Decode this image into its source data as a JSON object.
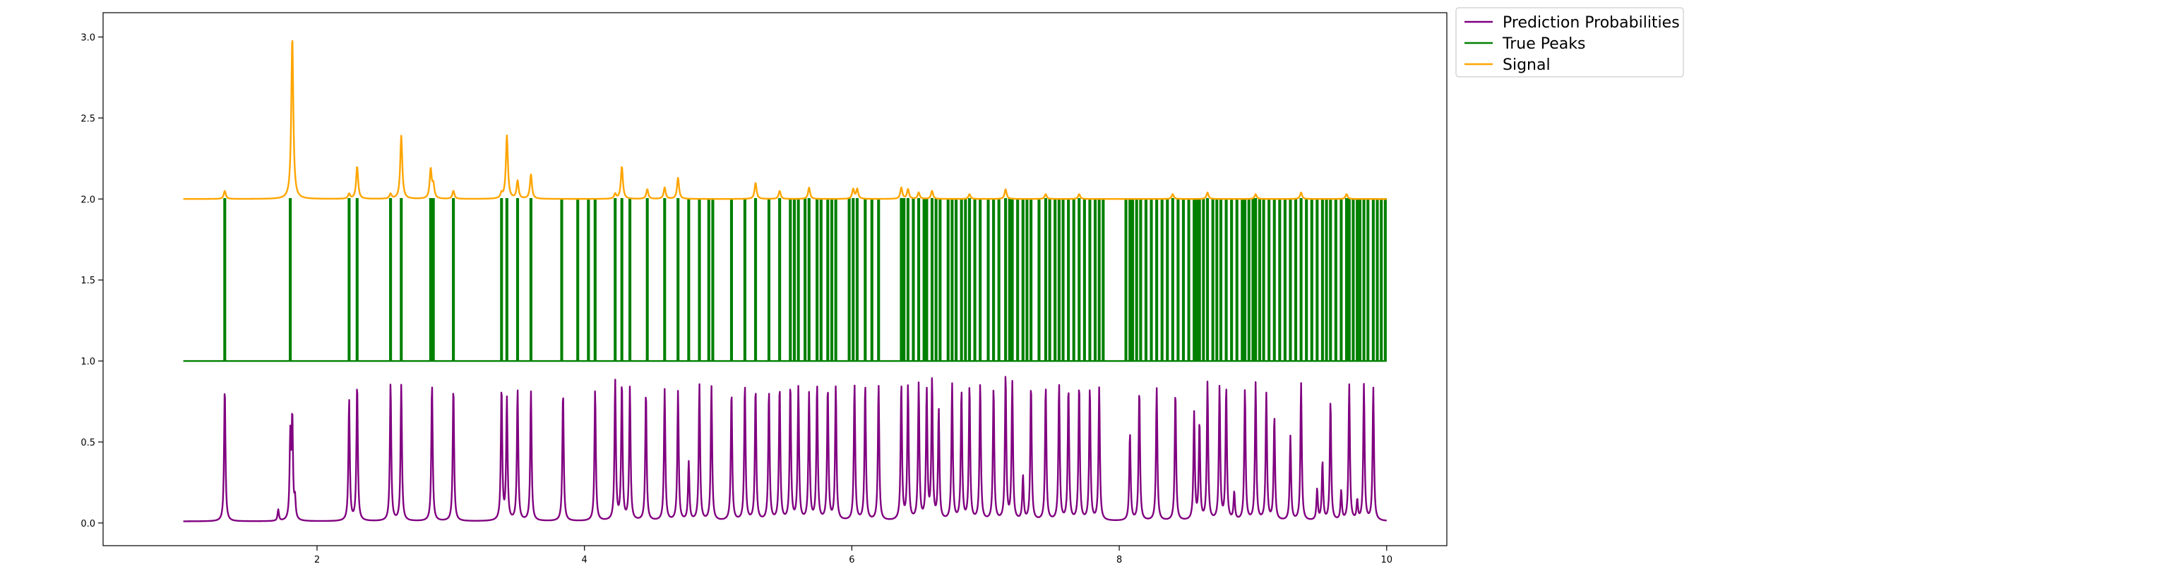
{
  "chart_data": {
    "type": "line",
    "title": "",
    "xlabel": "",
    "ylabel": "",
    "xlim": [
      0.4,
      10.45
    ],
    "ylim": [
      -0.14,
      3.15
    ],
    "x_ticks": [
      2,
      4,
      6,
      8,
      10
    ],
    "x_tick_labels": [
      "2",
      "4",
      "6",
      "8",
      "10"
    ],
    "y_ticks": [
      0.0,
      0.5,
      1.0,
      1.5,
      2.0,
      2.5,
      3.0
    ],
    "y_tick_labels": [
      "0.0",
      "0.5",
      "1.0",
      "1.5",
      "2.0",
      "2.5",
      "3.0"
    ],
    "grid": false,
    "legend_position": "outside-top-right",
    "x_range": [
      1.0,
      10.0
    ],
    "series": [
      {
        "name": "Prediction Probabilities",
        "color": "#800080",
        "baseline": 0.01,
        "peaks": [
          [
            1.31,
            0.83
          ],
          [
            1.71,
            0.07
          ],
          [
            1.8,
            0.5
          ],
          [
            1.815,
            0.62
          ],
          [
            1.835,
            0.12
          ],
          [
            2.24,
            0.75
          ],
          [
            2.3,
            0.85
          ],
          [
            2.55,
            0.85
          ],
          [
            2.63,
            0.84
          ],
          [
            2.86,
            0.85
          ],
          [
            3.02,
            0.83
          ],
          [
            3.38,
            0.82
          ],
          [
            3.42,
            0.75
          ],
          [
            3.5,
            0.81
          ],
          [
            3.6,
            0.8
          ],
          [
            3.84,
            0.8
          ],
          [
            4.08,
            0.81
          ],
          [
            4.23,
            0.86
          ],
          [
            4.28,
            0.85
          ],
          [
            4.34,
            0.82
          ],
          [
            4.46,
            0.8
          ],
          [
            4.6,
            0.81
          ],
          [
            4.7,
            0.8
          ],
          [
            4.78,
            0.36
          ],
          [
            4.86,
            0.84
          ],
          [
            4.95,
            0.83
          ],
          [
            5.1,
            0.8
          ],
          [
            5.2,
            0.84
          ],
          [
            5.28,
            0.82
          ],
          [
            5.38,
            0.8
          ],
          [
            5.46,
            0.83
          ],
          [
            5.54,
            0.84
          ],
          [
            5.6,
            0.82
          ],
          [
            5.68,
            0.78
          ],
          [
            5.74,
            0.84
          ],
          [
            5.82,
            0.82
          ],
          [
            5.88,
            0.83
          ],
          [
            6.02,
            0.84
          ],
          [
            6.1,
            0.84
          ],
          [
            6.2,
            0.84
          ],
          [
            6.37,
            0.84
          ],
          [
            6.42,
            0.83
          ],
          [
            6.5,
            0.84
          ],
          [
            6.56,
            0.8
          ],
          [
            6.6,
            0.86
          ],
          [
            6.65,
            0.68
          ],
          [
            6.75,
            0.84
          ],
          [
            6.82,
            0.8
          ],
          [
            6.88,
            0.83
          ],
          [
            6.96,
            0.84
          ],
          [
            7.06,
            0.82
          ],
          [
            7.15,
            0.9
          ],
          [
            7.2,
            0.85
          ],
          [
            7.28,
            0.27
          ],
          [
            7.34,
            0.84
          ],
          [
            7.45,
            0.83
          ],
          [
            7.55,
            0.84
          ],
          [
            7.62,
            0.82
          ],
          [
            7.7,
            0.84
          ],
          [
            7.78,
            0.82
          ],
          [
            7.85,
            0.82
          ],
          [
            8.08,
            0.54
          ],
          [
            8.15,
            0.81
          ],
          [
            8.28,
            0.82
          ],
          [
            8.42,
            0.8
          ],
          [
            8.56,
            0.66
          ],
          [
            8.6,
            0.6
          ],
          [
            8.66,
            0.85
          ],
          [
            8.75,
            0.82
          ],
          [
            8.8,
            0.82
          ],
          [
            8.86,
            0.17
          ],
          [
            8.94,
            0.81
          ],
          [
            9.02,
            0.85
          ],
          [
            9.1,
            0.78
          ],
          [
            9.16,
            0.64
          ],
          [
            9.28,
            0.52
          ],
          [
            9.36,
            0.85
          ],
          [
            9.48,
            0.19
          ],
          [
            9.52,
            0.36
          ],
          [
            9.58,
            0.74
          ],
          [
            9.66,
            0.18
          ],
          [
            9.72,
            0.84
          ],
          [
            9.78,
            0.12
          ],
          [
            9.83,
            0.84
          ],
          [
            9.9,
            0.82
          ]
        ]
      },
      {
        "name": "True Peaks",
        "color": "#008000",
        "low": 1.0,
        "high": 2.0,
        "peaks": [
          1.31,
          1.8,
          2.24,
          2.3,
          2.55,
          2.63,
          2.85,
          2.87,
          3.02,
          3.38,
          3.42,
          3.5,
          3.6,
          3.83,
          3.95,
          4.03,
          4.08,
          4.23,
          4.28,
          4.34,
          4.47,
          4.6,
          4.7,
          4.78,
          4.86,
          4.93,
          4.96,
          5.1,
          5.2,
          5.28,
          5.38,
          5.46,
          5.54,
          5.57,
          5.6,
          5.65,
          5.68,
          5.74,
          5.77,
          5.82,
          5.85,
          5.88,
          5.98,
          6.01,
          6.04,
          6.1,
          6.15,
          6.2,
          6.37,
          6.39,
          6.42,
          6.46,
          6.5,
          6.54,
          6.56,
          6.6,
          6.63,
          6.66,
          6.72,
          6.75,
          6.78,
          6.82,
          6.85,
          6.88,
          6.92,
          6.96,
          7.02,
          7.06,
          7.1,
          7.15,
          7.18,
          7.2,
          7.24,
          7.28,
          7.31,
          7.34,
          7.4,
          7.45,
          7.48,
          7.52,
          7.55,
          7.58,
          7.62,
          7.66,
          7.7,
          7.74,
          7.78,
          7.82,
          7.85,
          7.88,
          8.05,
          8.08,
          8.1,
          8.13,
          8.16,
          8.2,
          8.24,
          8.28,
          8.32,
          8.36,
          8.4,
          8.44,
          8.48,
          8.52,
          8.56,
          8.58,
          8.6,
          8.63,
          8.66,
          8.7,
          8.73,
          8.76,
          8.8,
          8.84,
          8.88,
          8.92,
          8.94,
          8.97,
          9.0,
          9.02,
          9.05,
          9.08,
          9.12,
          9.16,
          9.2,
          9.24,
          9.28,
          9.32,
          9.36,
          9.4,
          9.44,
          9.48,
          9.52,
          9.55,
          9.58,
          9.62,
          9.66,
          9.7,
          9.72,
          9.75,
          9.78,
          9.8,
          9.83,
          9.86,
          9.9,
          9.93,
          9.96,
          9.99
        ]
      },
      {
        "name": "Signal",
        "color": "#FFA500",
        "baseline": 2.0,
        "peaks": [
          [
            1.31,
            0.05
          ],
          [
            1.815,
            1.0
          ],
          [
            2.24,
            0.03
          ],
          [
            2.3,
            0.2
          ],
          [
            2.55,
            0.03
          ],
          [
            2.63,
            0.39
          ],
          [
            2.85,
            0.18
          ],
          [
            2.87,
            0.08
          ],
          [
            3.02,
            0.05
          ],
          [
            3.38,
            0.03
          ],
          [
            3.42,
            0.39
          ],
          [
            3.5,
            0.11
          ],
          [
            3.6,
            0.15
          ],
          [
            4.23,
            0.03
          ],
          [
            4.28,
            0.2
          ],
          [
            4.47,
            0.06
          ],
          [
            4.6,
            0.07
          ],
          [
            4.7,
            0.13
          ],
          [
            5.28,
            0.1
          ],
          [
            5.46,
            0.05
          ],
          [
            5.68,
            0.07
          ],
          [
            6.01,
            0.06
          ],
          [
            6.04,
            0.06
          ],
          [
            6.37,
            0.07
          ],
          [
            6.42,
            0.06
          ],
          [
            6.5,
            0.04
          ],
          [
            6.6,
            0.05
          ],
          [
            6.88,
            0.03
          ],
          [
            7.15,
            0.06
          ],
          [
            7.45,
            0.03
          ],
          [
            7.7,
            0.03
          ],
          [
            8.4,
            0.03
          ],
          [
            8.66,
            0.04
          ],
          [
            9.02,
            0.03
          ],
          [
            9.36,
            0.04
          ],
          [
            9.7,
            0.03
          ]
        ]
      }
    ]
  }
}
